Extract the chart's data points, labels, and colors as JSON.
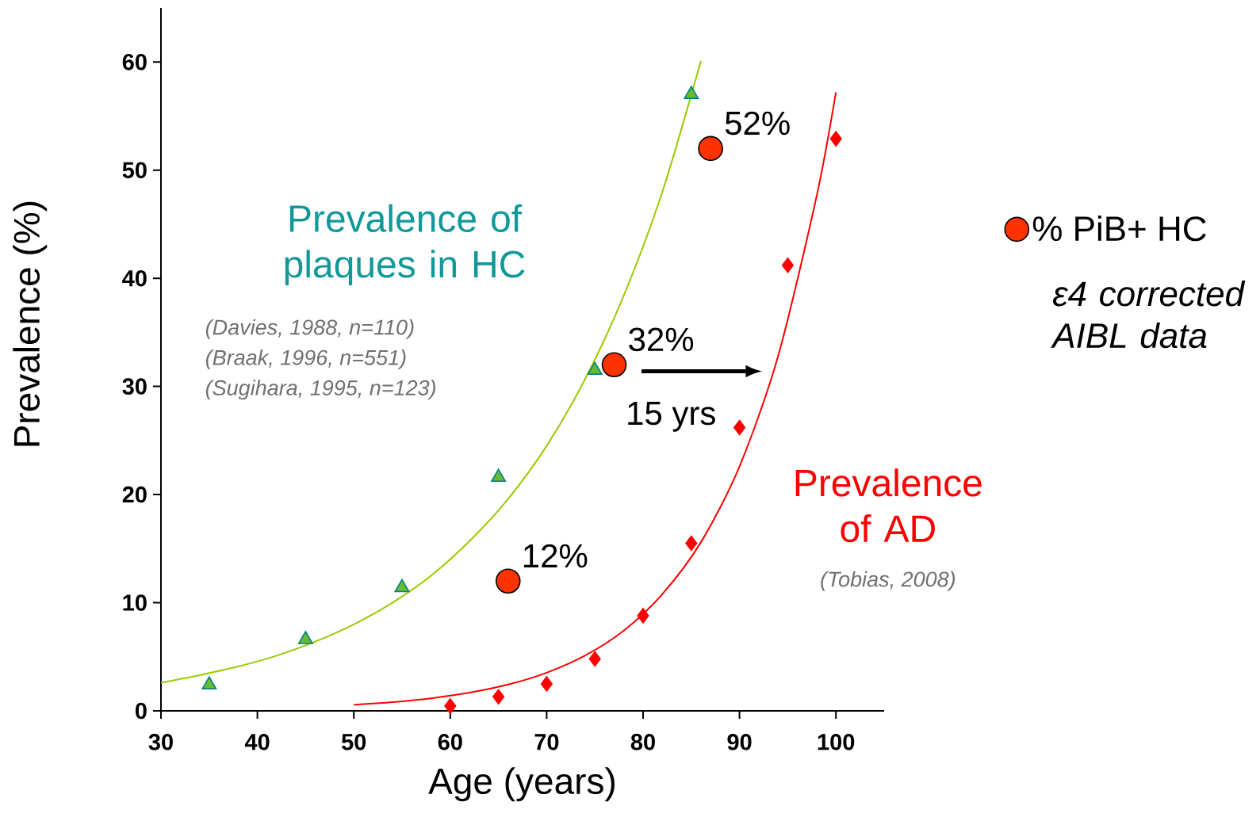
{
  "chart_data": {
    "type": "scatter",
    "xlabel": "Age (years)",
    "ylabel": "Prevalence (%)",
    "xlim": [
      30,
      105
    ],
    "ylim": [
      0,
      65
    ],
    "xticks": [
      30,
      40,
      50,
      60,
      70,
      80,
      90,
      100
    ],
    "yticks": [
      0,
      10,
      20,
      30,
      40,
      50,
      60
    ],
    "grid": false,
    "legend": "right",
    "series": [
      {
        "marker": "triangle",
        "color": "#66bb33",
        "x": [
          35,
          45,
          55,
          65,
          75,
          85
        ],
        "values": [
          2.4,
          6.6,
          11.4,
          21.6,
          31.5,
          57
        ]
      },
      {
        "type": "line",
        "marker": "none",
        "color": "#99cc00",
        "x": [
          30,
          34,
          38,
          42,
          46,
          50,
          54,
          58,
          62,
          66,
          70,
          74,
          78,
          82,
          86
        ],
        "values": [
          2.6,
          3.3,
          4.1,
          5.1,
          6.4,
          8.0,
          10.0,
          12.5,
          15.7,
          19.6,
          24.5,
          30.7,
          38.4,
          48.0,
          60.1
        ]
      },
      {
        "marker": "diamond",
        "color": "#ff0000",
        "x": [
          60,
          65,
          70,
          75,
          80,
          85,
          90,
          95,
          100
        ],
        "values": [
          0.45,
          1.3,
          2.5,
          4.8,
          8.8,
          15.5,
          26.2,
          41.2,
          52.9
        ]
      },
      {
        "type": "line",
        "marker": "none",
        "color": "#ff0000",
        "x": [
          50,
          54,
          58,
          62,
          66,
          70,
          74,
          78,
          82,
          86,
          90,
          94,
          98,
          100
        ],
        "values": [
          0.55,
          0.8,
          1.16,
          1.68,
          2.43,
          3.53,
          5.12,
          7.42,
          10.8,
          15.6,
          22.6,
          32.8,
          47.6,
          57.2
        ]
      },
      {
        "marker": "circle",
        "color": "#ff3300",
        "name": "% PiB+ HC",
        "x": [
          66,
          77,
          87
        ],
        "values": [
          12,
          32,
          52
        ]
      }
    ],
    "annotations": [
      "Prevalence of plaques in HC",
      "(Davies, 1988, n=110)",
      "(Braak, 1996, n=551)",
      "(Sugihara, 1995, n=123)",
      "Prevalence of AD",
      "(Tobias, 2008)",
      "15 yrs",
      {
        "text": "12%",
        "x": 66,
        "y": 12
      },
      {
        "text": "32%",
        "x": 77,
        "y": 32
      },
      {
        "text": "52%",
        "x": 87,
        "y": 52
      },
      "ε4 corrected AIBL data"
    ]
  }
}
